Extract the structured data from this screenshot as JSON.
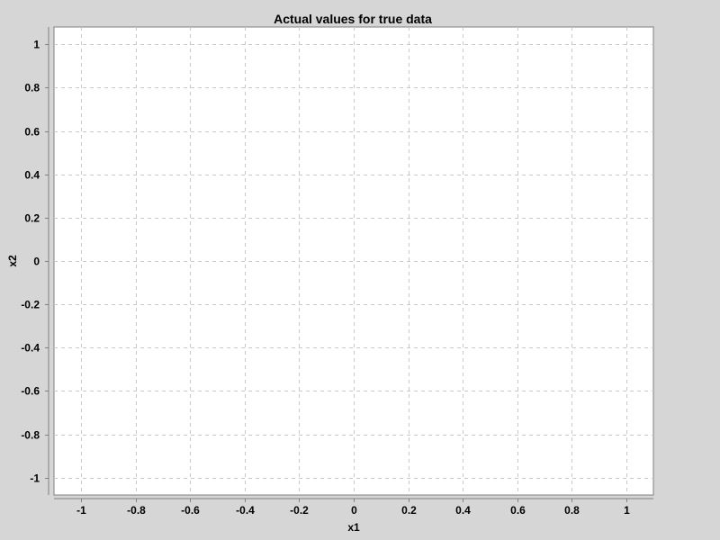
{
  "chart_data": {
    "type": "scatter",
    "title": "Actual values for true data",
    "xlabel": "x1",
    "ylabel": "x2",
    "xlim": [
      -1.1,
      1.1
    ],
    "ylim": [
      -1.08,
      1.08
    ],
    "xticks": [
      -1,
      -0.8,
      -0.6,
      -0.4,
      -0.2,
      0,
      0.2,
      0.4,
      0.6,
      0.8,
      1
    ],
    "yticks": [
      1,
      0.8,
      0.6,
      0.4,
      0.2,
      0,
      -0.2,
      -0.4,
      -0.6,
      -0.8,
      -1
    ],
    "x_tick_labels": [
      "-1",
      "-0.8",
      "-0.6",
      "-0.4",
      "-0.2",
      "0",
      "0.2",
      "0.4",
      "0.6",
      "0.8",
      "1"
    ],
    "y_tick_labels": [
      "1",
      "0.8",
      "0.6",
      "0.4",
      "0.2",
      "0",
      "-0.2",
      "-0.4",
      "-0.6",
      "-0.8",
      "-1"
    ],
    "series": [],
    "grid": true,
    "legend": "none"
  },
  "colors": {
    "background": "#d6d6d6",
    "plot_background": "#ffffff",
    "grid": "#c8c8c8",
    "axis": "#808080",
    "text": "#000000"
  }
}
